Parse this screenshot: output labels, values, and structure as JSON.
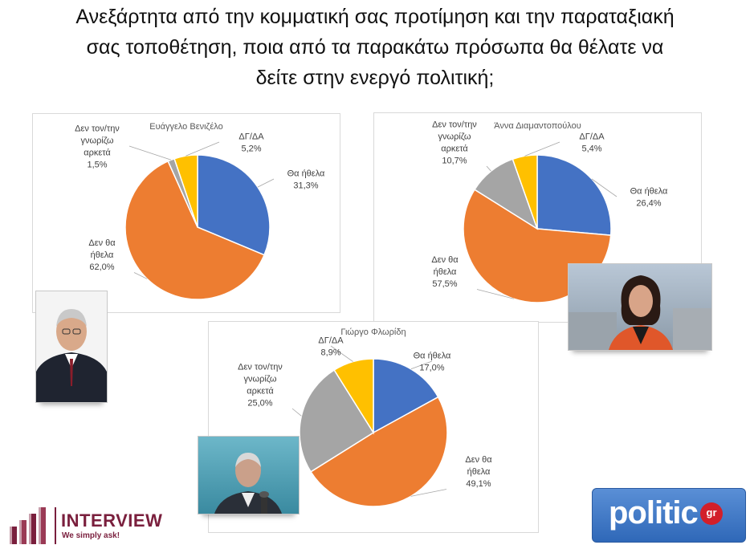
{
  "question": {
    "line1": "Ανεξάρτητα από την κομματική σας προτίμηση και την παραταξιακή",
    "line2": "σας τοποθέτηση, ποια από τα παρακάτω πρόσωπα θα θέλατε να",
    "line3": "δείτε στην ενεργό πολιτική;"
  },
  "chart_data": [
    {
      "type": "pie",
      "title": "Ευάγγελο Βενιζέλο",
      "slices": [
        {
          "label": "Θα ήθελα",
          "value": 31.3,
          "value_label": "31,3%",
          "color": "#4472c4"
        },
        {
          "label": "Δεν θα ήθελα",
          "value": 62.0,
          "value_label": "62,0%",
          "color": "#ed7d31"
        },
        {
          "label": "Δεν τον/την γνωρίζω αρκετά",
          "value": 1.5,
          "value_label": "1,5%",
          "color": "#a5a5a5"
        },
        {
          "label": "ΔΓ/ΔΑ",
          "value": 5.2,
          "value_label": "5,2%",
          "color": "#ffc000"
        }
      ]
    },
    {
      "type": "pie",
      "title": "Άννα Διαμαντοπούλου",
      "slices": [
        {
          "label": "Θα ήθελα",
          "value": 26.4,
          "value_label": "26,4%",
          "color": "#4472c4"
        },
        {
          "label": "Δεν θα ήθελα",
          "value": 57.5,
          "value_label": "57,5%",
          "color": "#ed7d31"
        },
        {
          "label": "Δεν τον/την γνωρίζω αρκετά",
          "value": 10.7,
          "value_label": "10,7%",
          "color": "#a5a5a5"
        },
        {
          "label": "ΔΓ/ΔΑ",
          "value": 5.4,
          "value_label": "5,4%",
          "color": "#ffc000"
        }
      ]
    },
    {
      "type": "pie",
      "title": "Γιώργο Φλωρίδη",
      "slices": [
        {
          "label": "Θα ήθελα",
          "value": 17.0,
          "value_label": "17,0%",
          "color": "#4472c4"
        },
        {
          "label": "Δεν θα ήθελα",
          "value": 49.1,
          "value_label": "49,1%",
          "color": "#ed7d31"
        },
        {
          "label": "Δεν τον/την γνωρίζω αρκετά",
          "value": 25.0,
          "value_label": "25,0%",
          "color": "#a5a5a5"
        },
        {
          "label": "ΔΓ/ΔΑ",
          "value": 8.9,
          "value_label": "8,9%",
          "color": "#ffc000"
        }
      ]
    }
  ],
  "logos": {
    "interview_name": "INTERVIEW",
    "interview_tagline": "We simply ask!",
    "politic_name": "politic",
    "politic_suffix": "gr"
  },
  "colors": {
    "brand_maroon": "#7a1f3d",
    "politic_blue": "#3a74c6"
  }
}
